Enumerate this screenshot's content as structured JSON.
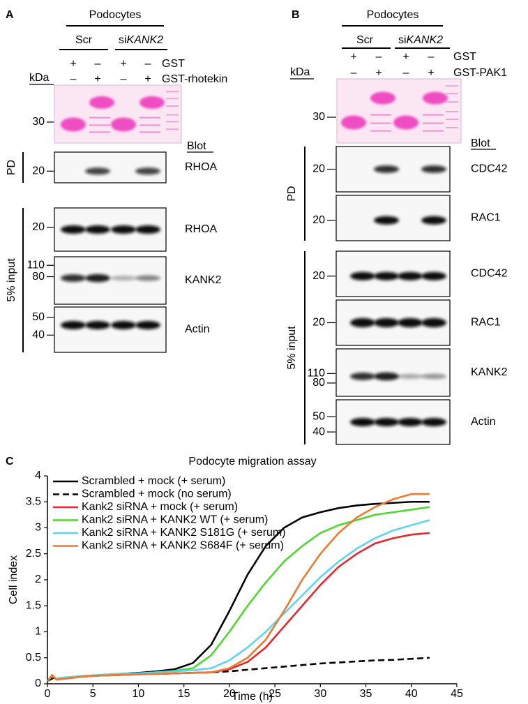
{
  "panel_a": {
    "label": "A",
    "header": "Podocytes",
    "groups": [
      {
        "label": [
          "Scr"
        ]
      },
      {
        "label": [
          "si",
          "KANK2"
        ]
      }
    ],
    "rows": [
      {
        "label": "GST",
        "signs": [
          "+",
          "–",
          "+",
          "–"
        ]
      },
      {
        "label": "GST-rhotekin",
        "signs": [
          "–",
          "+",
          "–",
          "+"
        ]
      }
    ],
    "kda": "kDa",
    "gel_marker": "30",
    "blot_header": "Blot",
    "sections": [
      {
        "label": "PD",
        "blots": [
          {
            "name": "RHOA",
            "markers": [
              "20"
            ]
          }
        ]
      },
      {
        "label": "5% input",
        "blots": [
          {
            "name": "RHOA",
            "markers": [
              "20"
            ]
          },
          {
            "name": "KANK2",
            "markers": [
              "110",
              "80"
            ]
          },
          {
            "name": "Actin",
            "markers": [
              "50",
              "40"
            ]
          }
        ]
      }
    ]
  },
  "panel_b": {
    "label": "B",
    "header": "Podocytes",
    "groups": [
      {
        "label": [
          "Scr"
        ]
      },
      {
        "label": [
          "si",
          "KANK2"
        ]
      }
    ],
    "rows": [
      {
        "label": "GST",
        "signs": [
          "+",
          "–",
          "+",
          "–"
        ]
      },
      {
        "label": "GST-PAK1",
        "signs": [
          "–",
          "+",
          "–",
          "+"
        ]
      }
    ],
    "kda": "kDa",
    "gel_marker": "30",
    "blot_header": "Blot",
    "sections": [
      {
        "label": "PD",
        "blots": [
          {
            "name": "CDC42",
            "markers": [
              "20"
            ]
          },
          {
            "name": "RAC1",
            "markers": [
              "20"
            ]
          }
        ]
      },
      {
        "label": "5% input",
        "blots": [
          {
            "name": "CDC42",
            "markers": [
              "20"
            ]
          },
          {
            "name": "RAC1",
            "markers": [
              "20"
            ]
          },
          {
            "name": "KANK2",
            "markers": [
              "110",
              "80"
            ]
          },
          {
            "name": "Actin",
            "markers": [
              "50",
              "40"
            ]
          }
        ]
      }
    ]
  },
  "chart_data": {
    "type": "line",
    "panel_label": "C",
    "title": "Podocyte migration assay",
    "x_label": "Time (h)",
    "y_label": "Cell index",
    "x": [
      0,
      0.5,
      1,
      2,
      4,
      6,
      8,
      10,
      12,
      14,
      16,
      18,
      20,
      22,
      24,
      26,
      28,
      30,
      32,
      34,
      36,
      38,
      40,
      42
    ],
    "series": [
      {
        "name": "Scrambled + mock (+ serum)",
        "color": "#000000",
        "dashed": false,
        "values": [
          0.05,
          0.12,
          0.1,
          0.12,
          0.15,
          0.17,
          0.19,
          0.21,
          0.24,
          0.28,
          0.4,
          0.75,
          1.4,
          2.1,
          2.65,
          3.0,
          3.2,
          3.3,
          3.38,
          3.43,
          3.46,
          3.48,
          3.5,
          3.5
        ]
      },
      {
        "name": "Scrambled + mock (no serum)",
        "color": "#000000",
        "dashed": true,
        "values": [
          0.05,
          0.1,
          0.1,
          0.12,
          0.14,
          0.16,
          0.17,
          0.18,
          0.19,
          0.2,
          0.21,
          0.22,
          0.24,
          0.27,
          0.3,
          0.33,
          0.36,
          0.39,
          0.41,
          0.43,
          0.45,
          0.46,
          0.48,
          0.5
        ]
      },
      {
        "name": "Kank2 siRNA + mock (+ serum)",
        "color": "#e8262b",
        "dashed": false,
        "values": [
          0.05,
          0.15,
          0.08,
          0.1,
          0.14,
          0.16,
          0.17,
          0.18,
          0.19,
          0.2,
          0.21,
          0.22,
          0.28,
          0.42,
          0.7,
          1.1,
          1.5,
          1.9,
          2.25,
          2.5,
          2.7,
          2.8,
          2.87,
          2.9
        ]
      },
      {
        "name": "Kank2 siRNA + KANK2 WT (+ serum)",
        "color": "#4fd631",
        "dashed": false,
        "values": [
          0.05,
          0.15,
          0.1,
          0.12,
          0.15,
          0.17,
          0.19,
          0.2,
          0.22,
          0.25,
          0.3,
          0.55,
          1.0,
          1.5,
          1.95,
          2.35,
          2.65,
          2.9,
          3.05,
          3.15,
          3.25,
          3.3,
          3.35,
          3.4
        ]
      },
      {
        "name": "Kank2 siRNA + KANK2 S181G (+ serum)",
        "color": "#5fd3ef",
        "dashed": false,
        "values": [
          0.05,
          0.15,
          0.1,
          0.12,
          0.15,
          0.17,
          0.19,
          0.2,
          0.22,
          0.24,
          0.26,
          0.3,
          0.45,
          0.7,
          1.0,
          1.35,
          1.7,
          2.05,
          2.35,
          2.6,
          2.8,
          2.95,
          3.05,
          3.15
        ]
      },
      {
        "name": "Kank2 siRNA + KANK2 S684F (+ serum)",
        "color": "#ef7a2f",
        "dashed": false,
        "values": [
          0.05,
          0.17,
          0.08,
          0.1,
          0.14,
          0.16,
          0.17,
          0.18,
          0.19,
          0.2,
          0.21,
          0.22,
          0.3,
          0.5,
          0.85,
          1.4,
          2.0,
          2.5,
          2.9,
          3.2,
          3.4,
          3.55,
          3.65,
          3.65
        ]
      }
    ],
    "xlim": [
      0,
      45
    ],
    "xticks": [
      0,
      5,
      10,
      15,
      20,
      25,
      30,
      35,
      40,
      45
    ],
    "ylim": [
      0,
      4
    ],
    "yticks": [
      0,
      0.5,
      1,
      1.5,
      2,
      2.5,
      3,
      3.5,
      4
    ],
    "grid": false,
    "legend": "upper-left"
  }
}
